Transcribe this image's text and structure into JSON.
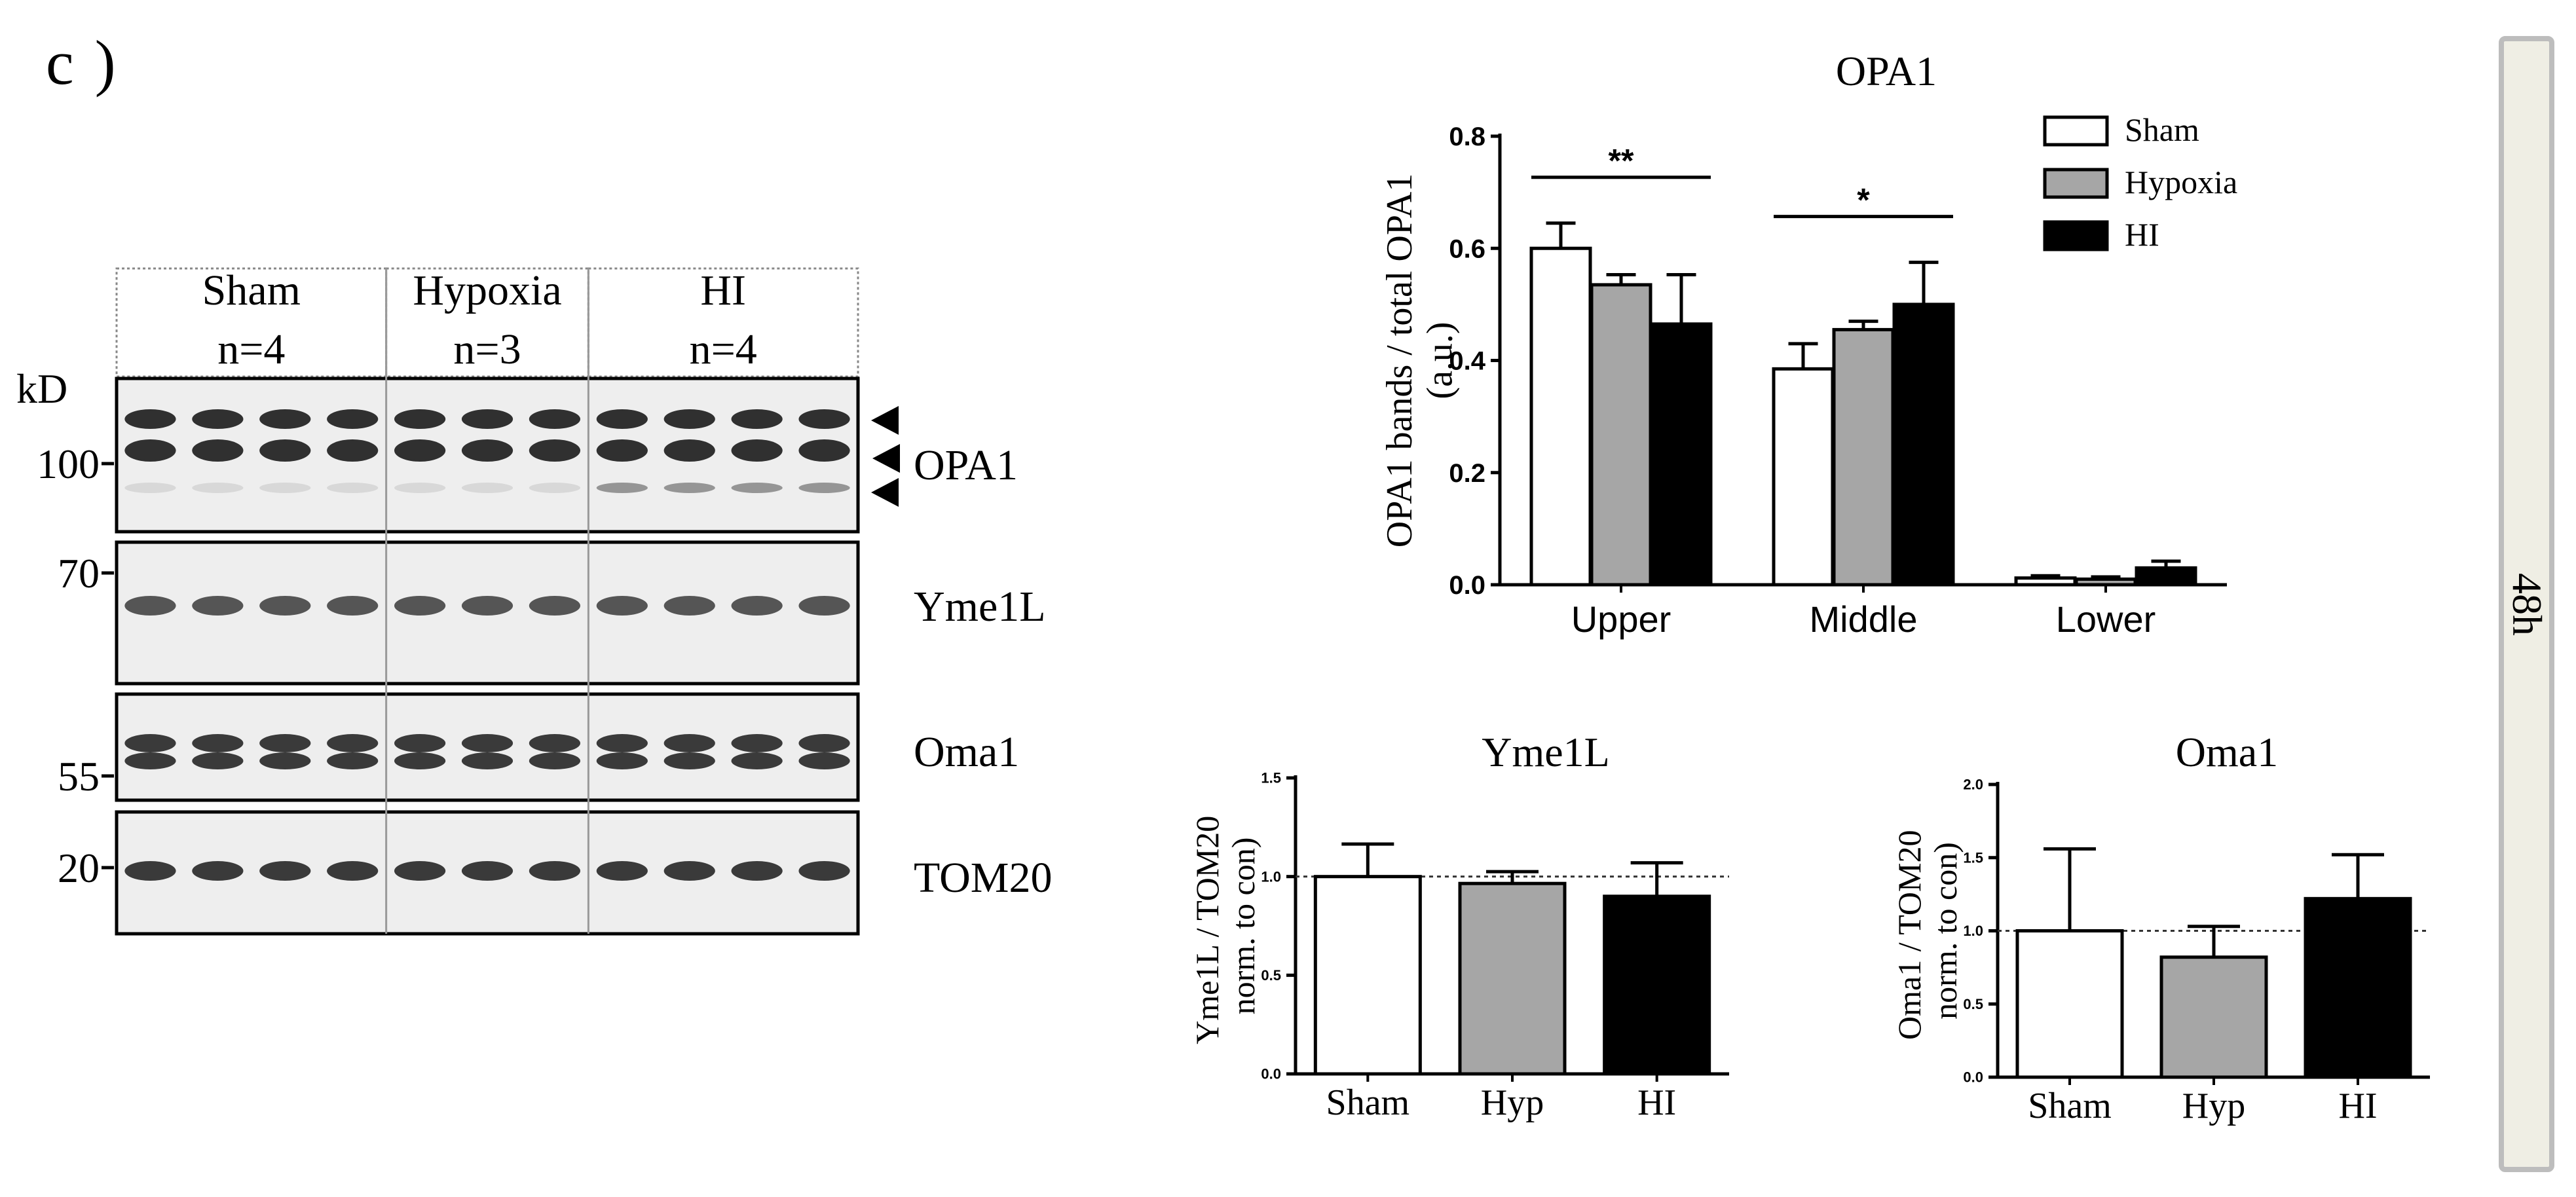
{
  "figure": {
    "panel_label": "c )",
    "side_tab": "48h"
  },
  "blot": {
    "groups": [
      {
        "name": "Sham",
        "n": "n=4",
        "lanes": 4
      },
      {
        "name": "Hypoxia",
        "n": "n=3",
        "lanes": 3
      },
      {
        "name": "HI",
        "n": "n=4",
        "lanes": 4
      }
    ],
    "marker_unit": "kD",
    "markers": [
      "100",
      "70",
      "55",
      "20"
    ],
    "strips": [
      {
        "protein": "OPA1",
        "arrows": 3
      },
      {
        "protein": "Yme1L",
        "arrows": 0
      },
      {
        "protein": "Oma1",
        "arrows": 0
      },
      {
        "protein": "TOM20",
        "arrows": 0
      }
    ]
  },
  "chart_data": [
    {
      "type": "bar",
      "title": "OPA1",
      "ylabel": "OPA1 bands / total OPA1 (a.u.)",
      "categories": [
        "Upper",
        "Middle",
        "Lower"
      ],
      "ylim": [
        0,
        0.8
      ],
      "yticks": [
        "0.0",
        "0.2",
        "0.4",
        "0.6",
        "0.8"
      ],
      "legend_position": "top-right",
      "series": [
        {
          "name": "Sham",
          "color": "#ffffff",
          "values": [
            0.6,
            0.385,
            0.012
          ],
          "errors": [
            0.045,
            0.045,
            0.004
          ]
        },
        {
          "name": "Hypoxia",
          "color": "#a6a6a6",
          "values": [
            0.535,
            0.455,
            0.01
          ],
          "errors": [
            0.018,
            0.015,
            0.004
          ]
        },
        {
          "name": "HI",
          "color": "#000000",
          "values": [
            0.465,
            0.5,
            0.03
          ],
          "errors": [
            0.088,
            0.075,
            0.012
          ]
        }
      ],
      "significance": [
        {
          "category": "Upper",
          "label": "**"
        },
        {
          "category": "Middle",
          "label": "*"
        }
      ]
    },
    {
      "type": "bar",
      "title": "Yme1L",
      "ylabel": "Yme1L / TOM20 (norm. to con)",
      "categories": [
        "Sham",
        "Hyp",
        "HI"
      ],
      "ylim": [
        0,
        1.5
      ],
      "yticks": [
        "0.0",
        "0.5",
        "1.0",
        "1.5"
      ],
      "reference_line": 1.0,
      "colors": [
        "#ffffff",
        "#a6a6a6",
        "#000000"
      ],
      "values": [
        1.0,
        0.965,
        0.9
      ],
      "errors": [
        0.165,
        0.06,
        0.17
      ]
    },
    {
      "type": "bar",
      "title": "Oma1",
      "ylabel": "Oma1 / TOM20 (norm. to con)",
      "categories": [
        "Sham",
        "Hyp",
        "HI"
      ],
      "ylim": [
        0,
        2.0
      ],
      "yticks": [
        "0.0",
        "0.5",
        "1.0",
        "1.5",
        "2.0"
      ],
      "reference_line": 1.0,
      "colors": [
        "#ffffff",
        "#a6a6a6",
        "#000000"
      ],
      "values": [
        1.0,
        0.82,
        1.22
      ],
      "errors": [
        0.56,
        0.21,
        0.3
      ]
    }
  ]
}
